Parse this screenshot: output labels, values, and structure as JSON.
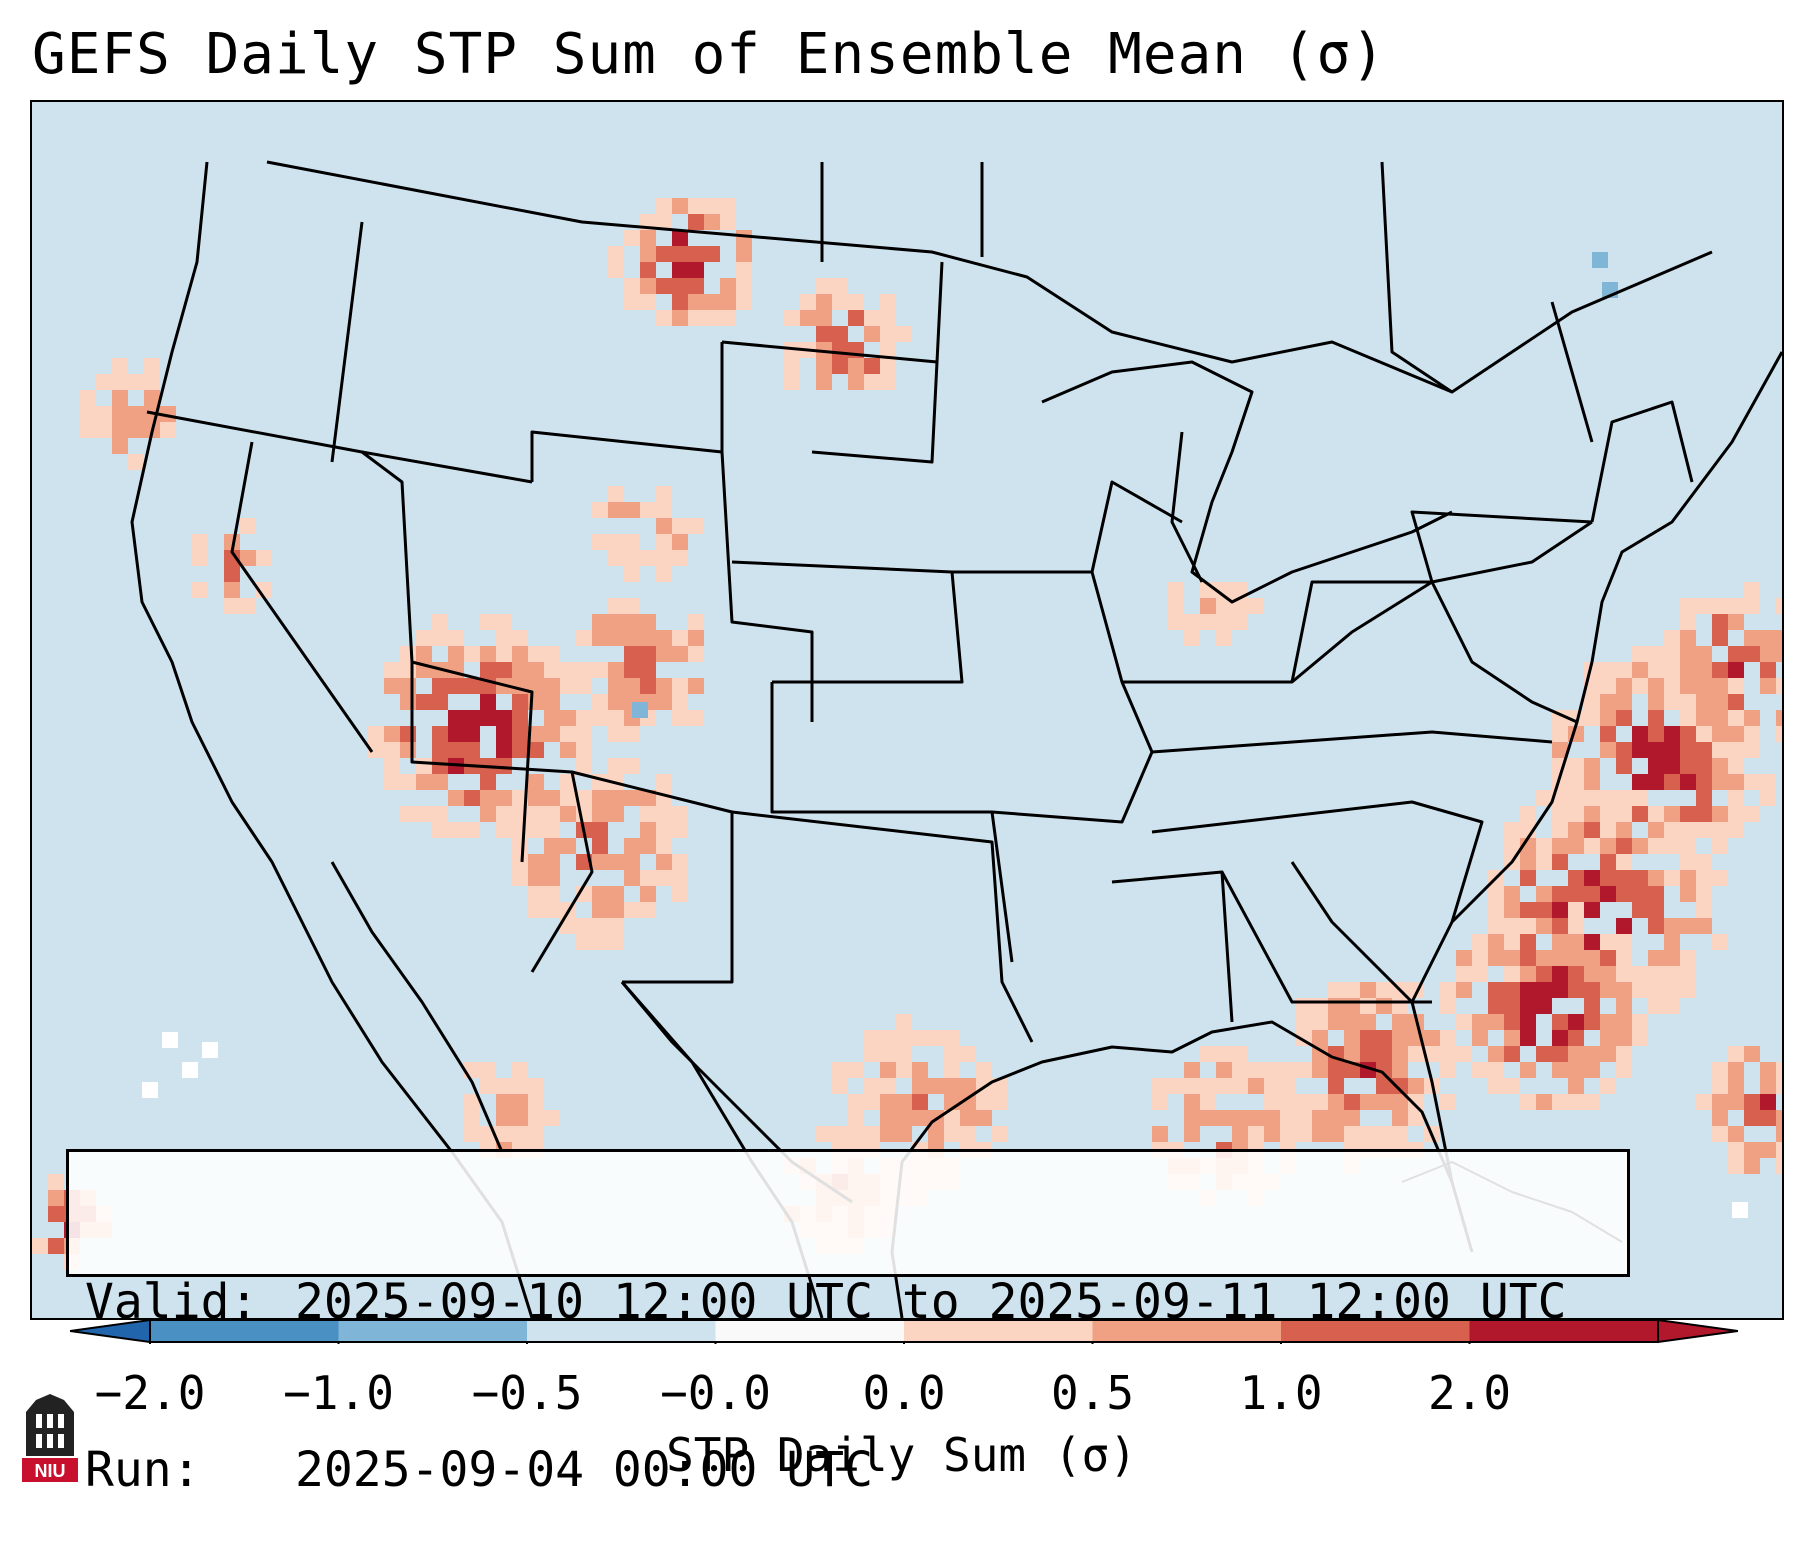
{
  "title": "GEFS Daily STP Sum of Ensemble Mean (σ)",
  "info": {
    "valid_label": "Valid:",
    "valid_value": "2025-09-10 12:00 UTC to 2025-09-11 12:00 UTC",
    "run_label": "Run:",
    "run_value": "2025-09-04 00:00 UTC"
  },
  "colorbar": {
    "label": "STP Daily Sum (σ)",
    "ticks": [
      "−2.0",
      "−1.0",
      "−0.5",
      "−0.0",
      "0.0",
      "0.5",
      "1.0",
      "2.0"
    ],
    "colors": [
      "#4a90c2",
      "#7fb6d8",
      "#cfe3ef",
      "#f9f9f9",
      "#fcd5c2",
      "#f0a083",
      "#d8604f",
      "#b2182b"
    ],
    "extend_low_color": "#2166ac",
    "extend_high_color": "#b2182b"
  },
  "map": {
    "background_color": "#cfe3ef",
    "outline_color": "#000000"
  },
  "logo": {
    "text": "NIU",
    "color": "#c8102e"
  }
}
